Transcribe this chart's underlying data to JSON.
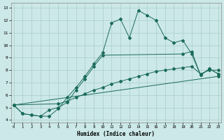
{
  "xlabel": "Humidex (Indice chaleur)",
  "bg_color": "#cce8e8",
  "grid_color": "#aacccc",
  "line_color": "#1a6b5a",
  "xlim": [
    -0.3,
    23.3
  ],
  "ylim": [
    3.8,
    13.4
  ],
  "yticks": [
    4,
    5,
    6,
    7,
    8,
    9,
    10,
    11,
    12,
    13
  ],
  "xticks": [
    0,
    1,
    2,
    3,
    4,
    5,
    6,
    7,
    8,
    9,
    10,
    11,
    12,
    13,
    14,
    15,
    16,
    17,
    18,
    19,
    20,
    21,
    22,
    23
  ],
  "line1_x": [
    0,
    1,
    2,
    3,
    4,
    5,
    6,
    7,
    8,
    9,
    10,
    11,
    12,
    13,
    14,
    15,
    16,
    17,
    18,
    19,
    20,
    21,
    22,
    23
  ],
  "line1_y": [
    5.2,
    4.5,
    4.4,
    4.3,
    4.3,
    4.9,
    5.8,
    6.6,
    7.5,
    8.5,
    9.4,
    11.8,
    12.1,
    10.6,
    12.8,
    12.4,
    12.0,
    10.6,
    10.2,
    10.4,
    9.3,
    7.6,
    8.1,
    7.7
  ],
  "line2_x": [
    0,
    1,
    2,
    3,
    4,
    5,
    6,
    7,
    8,
    9,
    10,
    19,
    20,
    21,
    22,
    23
  ],
  "line2_y": [
    5.2,
    4.5,
    4.4,
    4.3,
    4.8,
    5.0,
    5.4,
    6.4,
    7.3,
    8.3,
    9.2,
    9.3,
    9.5,
    7.6,
    8.1,
    7.7
  ],
  "line3_x": [
    0,
    5,
    6,
    7,
    8,
    9,
    10,
    11,
    12,
    13,
    14,
    15,
    16,
    17,
    18,
    19,
    20,
    21,
    22,
    23
  ],
  "line3_y": [
    5.2,
    5.3,
    5.5,
    5.8,
    6.1,
    6.4,
    6.6,
    6.9,
    7.1,
    7.3,
    7.5,
    7.7,
    7.9,
    8.0,
    8.1,
    8.2,
    8.3,
    7.7,
    8.0,
    8.0
  ],
  "line4_x": [
    0,
    23
  ],
  "line4_y": [
    5.2,
    7.5
  ]
}
